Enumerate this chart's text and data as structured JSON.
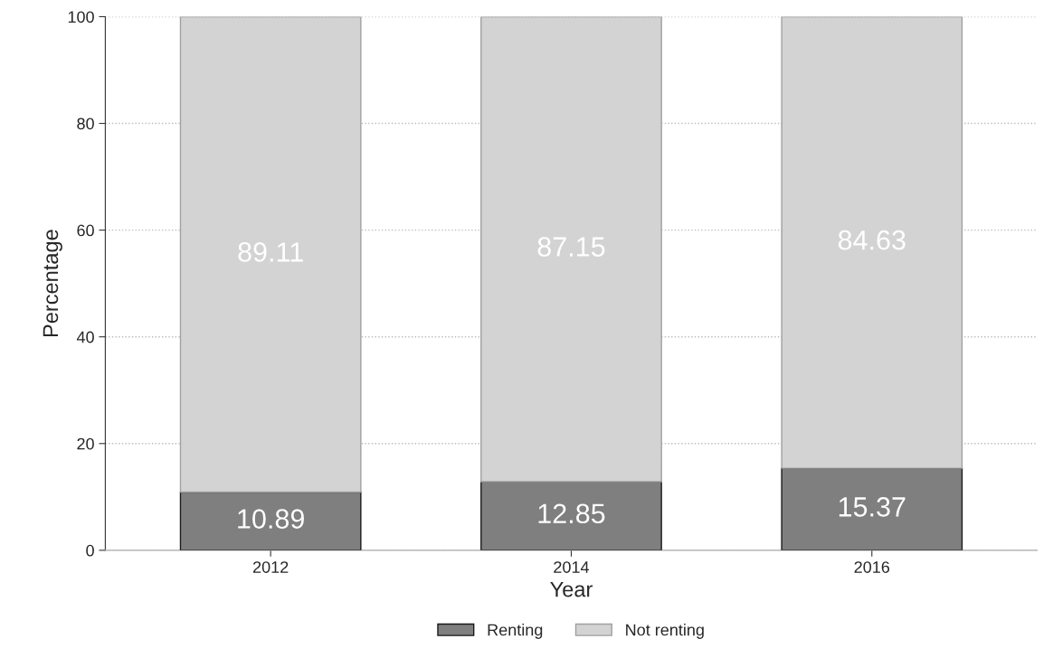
{
  "chart_data": {
    "type": "bar",
    "stacked": true,
    "xlabel": "Year",
    "ylabel": "Percentage",
    "categories": [
      "2012",
      "2014",
      "2016"
    ],
    "series": [
      {
        "name": "Renting",
        "color": "#7f7f7f",
        "values": [
          10.89,
          12.85,
          15.37
        ]
      },
      {
        "name": "Not renting",
        "color": "#d3d3d3",
        "values": [
          89.11,
          87.15,
          84.63
        ]
      }
    ],
    "ylim": [
      0,
      100
    ],
    "yticks": [
      0,
      20,
      40,
      60,
      80,
      100
    ],
    "grid": "y",
    "legend": "bottom",
    "data_labels": true
  }
}
